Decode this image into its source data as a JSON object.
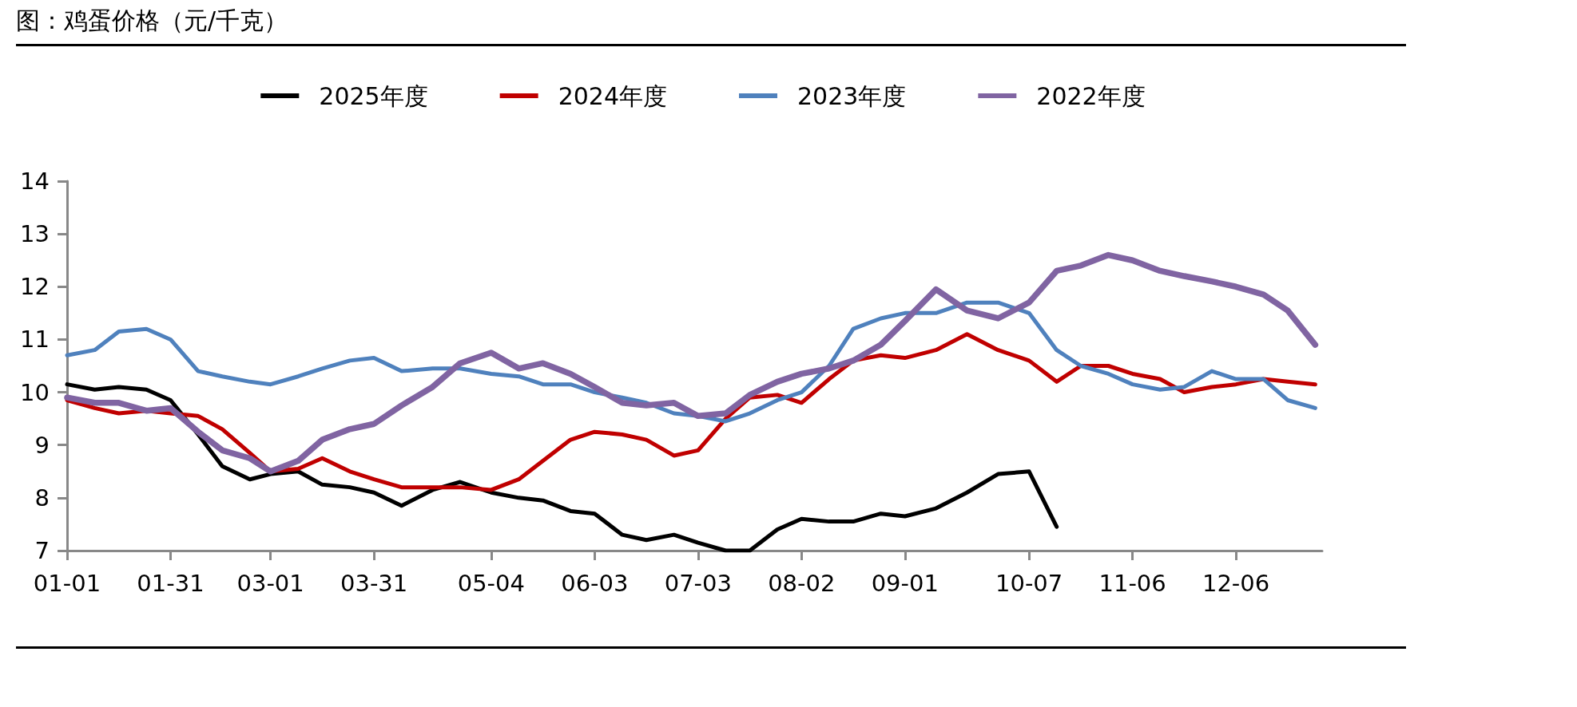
{
  "chart_data": {
    "type": "line",
    "title": "图：鸡蛋价格（元/千克）",
    "x": [
      "--01-01",
      "--01-09",
      "--01-16",
      "--01-24",
      "--01-31",
      "--02-08",
      "--02-15",
      "--02-23",
      "--03-01",
      "--03-09",
      "--03-16",
      "--03-24",
      "--03-31",
      "--04-08",
      "--04-17",
      "--04-25",
      "--05-04",
      "--05-12",
      "--05-19",
      "--05-27",
      "--06-03",
      "--06-11",
      "--06-18",
      "--06-26",
      "--07-03",
      "--07-11",
      "--07-18",
      "--07-26",
      "--08-02",
      "--08-10",
      "--08-17",
      "--08-25",
      "--09-01",
      "--09-10",
      "--09-19",
      "--09-28",
      "--10-07",
      "--10-15",
      "--10-22",
      "--10-30",
      "--11-06",
      "--11-14",
      "--11-21",
      "--11-29",
      "--12-06",
      "--12-14",
      "--12-21",
      "--12-29"
    ],
    "series": [
      {
        "name": "2025年度",
        "color": "#000000",
        "values": [
          10.15,
          10.05,
          10.1,
          10.05,
          9.85,
          9.2,
          8.6,
          8.35,
          8.45,
          8.5,
          8.25,
          8.2,
          8.1,
          7.85,
          8.15,
          8.3,
          8.1,
          8.0,
          7.95,
          7.75,
          7.7,
          7.3,
          7.2,
          7.3,
          7.15,
          7.0,
          7.0,
          7.4,
          7.6,
          7.55,
          7.55,
          7.7,
          7.65,
          7.8,
          8.1,
          8.45,
          8.5,
          7.45,
          null,
          null,
          null,
          null,
          null,
          null,
          null,
          null,
          null,
          null
        ]
      },
      {
        "name": "2024年度",
        "color": "#c00000",
        "values": [
          9.85,
          9.7,
          9.6,
          9.65,
          9.6,
          9.55,
          9.3,
          8.85,
          8.5,
          8.55,
          8.75,
          8.5,
          8.35,
          8.2,
          8.2,
          8.2,
          8.15,
          8.35,
          8.7,
          9.1,
          9.25,
          9.2,
          9.1,
          8.8,
          8.9,
          9.5,
          9.9,
          9.95,
          9.8,
          10.25,
          10.6,
          10.7,
          10.65,
          10.8,
          11.1,
          10.8,
          10.6,
          10.2,
          10.5,
          10.5,
          10.35,
          10.25,
          10.0,
          10.1,
          10.15,
          10.25,
          10.2,
          10.15
        ]
      },
      {
        "name": "2023年度",
        "color": "#4f81bd",
        "values": [
          10.7,
          10.8,
          11.15,
          11.2,
          11.0,
          10.4,
          10.3,
          10.2,
          10.15,
          10.3,
          10.45,
          10.6,
          10.65,
          10.4,
          10.45,
          10.45,
          10.35,
          10.3,
          10.15,
          10.15,
          10.0,
          9.9,
          9.8,
          9.6,
          9.55,
          9.45,
          9.6,
          9.85,
          10.0,
          10.5,
          11.2,
          11.4,
          11.5,
          11.5,
          11.7,
          11.7,
          11.5,
          10.8,
          10.5,
          10.35,
          10.15,
          10.05,
          10.1,
          10.4,
          10.25,
          10.25,
          9.85,
          9.7
        ]
      },
      {
        "name": "2022年度",
        "color": "#8064a2",
        "values": [
          9.9,
          9.8,
          9.8,
          9.65,
          9.7,
          9.25,
          8.9,
          8.75,
          8.5,
          8.7,
          9.1,
          9.3,
          9.4,
          9.75,
          10.1,
          10.55,
          10.75,
          10.45,
          10.55,
          10.35,
          10.1,
          9.8,
          9.75,
          9.8,
          9.55,
          9.6,
          9.95,
          10.2,
          10.35,
          10.45,
          10.6,
          10.9,
          11.35,
          11.95,
          11.55,
          11.4,
          11.7,
          12.3,
          12.4,
          12.6,
          12.5,
          12.3,
          12.2,
          12.1,
          12.0,
          11.85,
          11.55,
          10.9
        ]
      }
    ],
    "xlim": [
      "--01-01",
      "--12-31"
    ],
    "xticks": [
      {
        "value": "--01-01",
        "label": "01-01"
      },
      {
        "value": "--01-31",
        "label": "01-31"
      },
      {
        "value": "--03-01",
        "label": "03-01"
      },
      {
        "value": "--03-31",
        "label": "03-31"
      },
      {
        "value": "--05-04",
        "label": "05-04"
      },
      {
        "value": "--06-03",
        "label": "06-03"
      },
      {
        "value": "--07-03",
        "label": "07-03"
      },
      {
        "value": "--08-02",
        "label": "08-02"
      },
      {
        "value": "--09-01",
        "label": "09-01"
      },
      {
        "value": "--10-07",
        "label": "10-07"
      },
      {
        "value": "--11-06",
        "label": "11-06"
      },
      {
        "value": "--12-06",
        "label": "12-06"
      }
    ],
    "ylim": [
      7,
      14
    ],
    "yticks": [
      7,
      8,
      9,
      10,
      11,
      12,
      13,
      14
    ],
    "legend": "top",
    "grid": false,
    "marker": "none",
    "line_style": "solid"
  }
}
